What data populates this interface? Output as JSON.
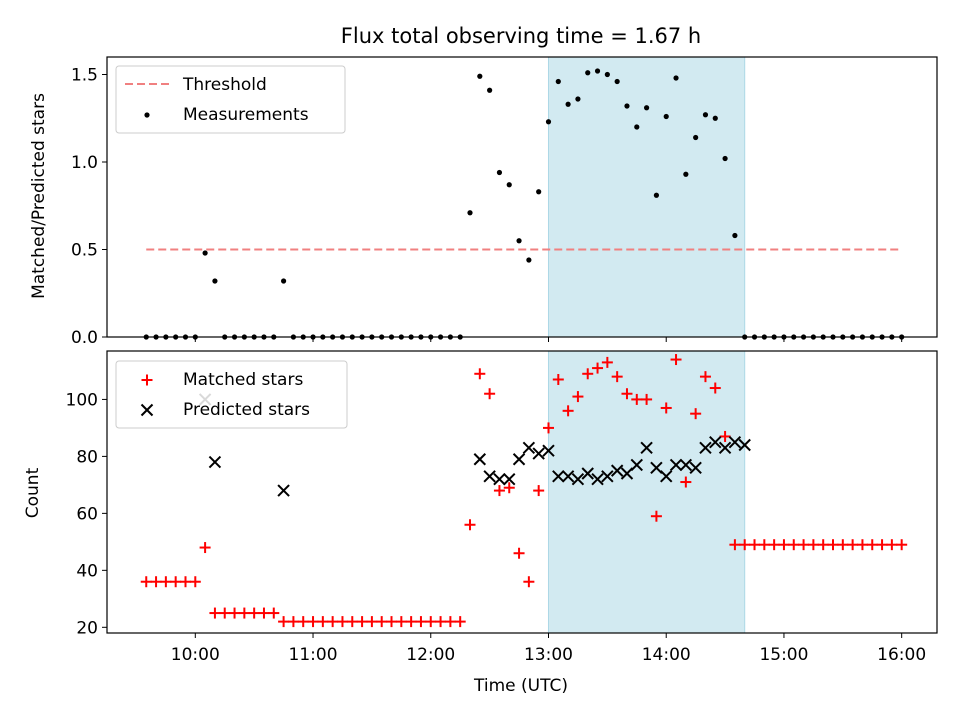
{
  "colors": {
    "threshold": "#f08080",
    "measurement": "#000000",
    "matched": "#ff0000",
    "predicted": "#000000",
    "observing_window": "#add8e6"
  },
  "chart_data": [
    {
      "type": "scatter",
      "title": "Flux total observing time = 1.67 h",
      "xlabel": "",
      "ylabel": "Matched/Predicted stars",
      "xlim": [
        "09:15",
        "16:18"
      ],
      "ylim": [
        0,
        1.6
      ],
      "xticks": [],
      "yticks": [
        {
          "value": 0,
          "label": "0.0"
        },
        {
          "value": 0.5,
          "label": "0.5"
        },
        {
          "value": 1.0,
          "label": "1.0"
        },
        {
          "value": 1.5,
          "label": "1.5"
        }
      ],
      "observing_window": {
        "start": "13:00",
        "end": "14:40"
      },
      "legend": {
        "position": "upper-left",
        "entries": [
          "Threshold",
          "Measurements"
        ]
      },
      "threshold": {
        "name": "Threshold",
        "value": 0.5,
        "x_range": [
          "09:35",
          "16:00"
        ]
      },
      "series": [
        {
          "name": "Measurements",
          "marker": "dot",
          "x": [
            "09:35",
            "09:40",
            "09:45",
            "09:50",
            "09:55",
            "10:00",
            "10:05",
            "10:10",
            "10:15",
            "10:20",
            "10:25",
            "10:30",
            "10:35",
            "10:40",
            "10:45",
            "10:50",
            "10:55",
            "11:00",
            "11:05",
            "11:10",
            "11:15",
            "11:20",
            "11:25",
            "11:30",
            "11:35",
            "11:40",
            "11:45",
            "11:50",
            "11:55",
            "12:00",
            "12:05",
            "12:10",
            "12:15",
            "12:20",
            "12:25",
            "12:30",
            "12:35",
            "12:40",
            "12:45",
            "12:50",
            "12:55",
            "13:00",
            "13:05",
            "13:10",
            "13:15",
            "13:20",
            "13:25",
            "13:30",
            "13:35",
            "13:40",
            "13:45",
            "13:50",
            "13:55",
            "14:00",
            "14:05",
            "14:10",
            "14:15",
            "14:20",
            "14:25",
            "14:30",
            "14:35",
            "14:40",
            "14:45",
            "14:50",
            "14:55",
            "15:00",
            "15:05",
            "15:10",
            "15:15",
            "15:20",
            "15:25",
            "15:30",
            "15:35",
            "15:40",
            "15:45",
            "15:50",
            "15:55",
            "16:00"
          ],
          "y": [
            0,
            0,
            0,
            0,
            0,
            0,
            0.48,
            0.32,
            0,
            0,
            0,
            0,
            0,
            0,
            0.32,
            0,
            0,
            0,
            0,
            0,
            0,
            0,
            0,
            0,
            0,
            0,
            0,
            0,
            0,
            0,
            0,
            0,
            0,
            0.71,
            1.49,
            1.41,
            0.94,
            0.87,
            0.55,
            0.44,
            0.83,
            1.23,
            1.46,
            1.33,
            1.36,
            1.51,
            1.52,
            1.5,
            1.46,
            1.32,
            1.2,
            1.31,
            0.81,
            1.26,
            1.48,
            0.93,
            1.14,
            1.27,
            1.25,
            1.02,
            0.58,
            0,
            0,
            0,
            0,
            0,
            0,
            0,
            0,
            0,
            0,
            0,
            0,
            0,
            0,
            0,
            0,
            0
          ]
        }
      ]
    },
    {
      "type": "scatter",
      "title": "",
      "xlabel": "Time (UTC)",
      "ylabel": "Count",
      "xlim": [
        "09:15",
        "16:18"
      ],
      "ylim": [
        18,
        117
      ],
      "xticks": [
        "10:00",
        "11:00",
        "12:00",
        "13:00",
        "14:00",
        "15:00",
        "16:00"
      ],
      "yticks": [
        20,
        40,
        60,
        80,
        100
      ],
      "observing_window": {
        "start": "13:00",
        "end": "14:40"
      },
      "legend": {
        "position": "upper-left",
        "entries": [
          "Matched stars",
          "Predicted stars"
        ]
      },
      "series": [
        {
          "name": "Matched stars",
          "marker": "plus",
          "x": [
            "09:35",
            "09:40",
            "09:45",
            "09:50",
            "09:55",
            "10:00",
            "10:05",
            "10:10",
            "10:15",
            "10:20",
            "10:25",
            "10:30",
            "10:35",
            "10:40",
            "10:45",
            "10:50",
            "10:55",
            "11:00",
            "11:05",
            "11:10",
            "11:15",
            "11:20",
            "11:25",
            "11:30",
            "11:35",
            "11:40",
            "11:45",
            "11:50",
            "11:55",
            "12:00",
            "12:05",
            "12:10",
            "12:15",
            "12:20",
            "12:25",
            "12:30",
            "12:35",
            "12:40",
            "12:45",
            "12:50",
            "12:55",
            "13:00",
            "13:05",
            "13:10",
            "13:15",
            "13:20",
            "13:25",
            "13:30",
            "13:35",
            "13:40",
            "13:45",
            "13:50",
            "13:55",
            "14:00",
            "14:05",
            "14:10",
            "14:15",
            "14:20",
            "14:25",
            "14:30",
            "14:35",
            "14:40",
            "14:45",
            "14:50",
            "14:55",
            "15:00",
            "15:05",
            "15:10",
            "15:15",
            "15:20",
            "15:25",
            "15:30",
            "15:35",
            "15:40",
            "15:45",
            "15:50",
            "15:55",
            "16:00"
          ],
          "y": [
            36,
            36,
            36,
            36,
            36,
            36,
            48,
            25,
            25,
            25,
            25,
            25,
            25,
            25,
            22,
            22,
            22,
            22,
            22,
            22,
            22,
            22,
            22,
            22,
            22,
            22,
            22,
            22,
            22,
            22,
            22,
            22,
            22,
            56,
            109,
            102,
            68,
            69,
            46,
            36,
            68,
            90,
            107,
            96,
            101,
            109,
            111,
            113,
            108,
            102,
            100,
            100,
            59,
            97,
            114,
            71,
            95,
            108,
            104,
            87,
            49,
            49,
            49,
            49,
            49,
            49,
            49,
            49,
            49,
            49,
            49,
            49,
            49,
            49,
            49,
            49,
            49,
            49
          ]
        },
        {
          "name": "Predicted stars",
          "marker": "x",
          "x": [
            "10:05",
            "10:10",
            "10:45",
            "12:25",
            "12:30",
            "12:35",
            "12:40",
            "12:45",
            "12:50",
            "12:55",
            "13:00",
            "13:05",
            "13:10",
            "13:15",
            "13:20",
            "13:25",
            "13:30",
            "13:35",
            "13:40",
            "13:45",
            "13:50",
            "13:55",
            "14:00",
            "14:05",
            "14:10",
            "14:15",
            "14:20",
            "14:25",
            "14:30",
            "14:35",
            "14:40"
          ],
          "y": [
            100,
            78,
            68,
            79,
            73,
            72,
            72,
            79,
            83,
            81,
            82,
            73,
            73,
            72,
            74,
            72,
            73,
            75,
            74,
            77,
            83,
            76,
            73,
            77,
            77,
            76,
            83,
            85,
            83,
            85,
            84
          ]
        }
      ]
    }
  ]
}
